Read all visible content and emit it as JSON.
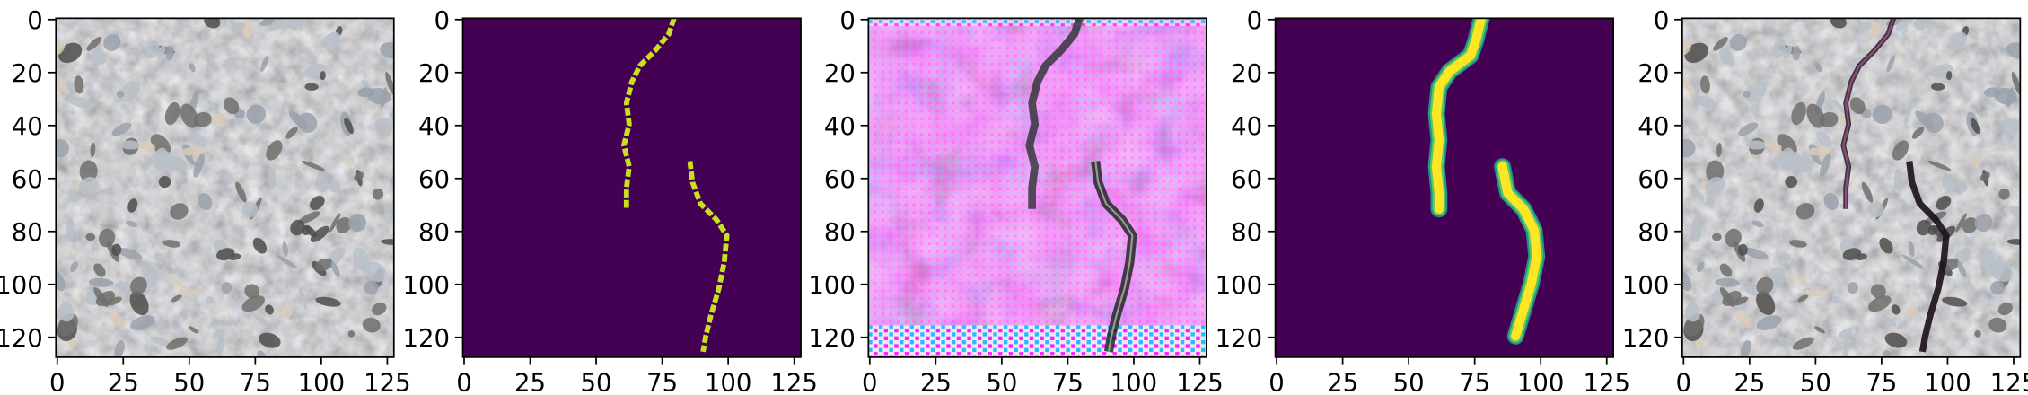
{
  "figure": {
    "panel_count": 5,
    "x_ticks": [
      "0",
      "25",
      "50",
      "75",
      "100",
      "125"
    ],
    "y_ticks": [
      "0",
      "20",
      "40",
      "60",
      "80",
      "100",
      "120"
    ],
    "tick_values_x": [
      0,
      25,
      50,
      75,
      100,
      125
    ],
    "tick_values_y": [
      0,
      20,
      40,
      60,
      80,
      100,
      120
    ],
    "image_extent": [
      0,
      128
    ],
    "colors": {
      "background": "#ffffff",
      "axes": "#000000",
      "viridis_low": "#440154",
      "viridis_high": "#fde725",
      "viridis_mid": "#21918c"
    },
    "panels": [
      {
        "kind": "asphalt-photo"
      },
      {
        "kind": "crack-label-mask"
      },
      {
        "kind": "generated-image"
      },
      {
        "kind": "predicted-mask"
      },
      {
        "kind": "overlay"
      }
    ]
  }
}
